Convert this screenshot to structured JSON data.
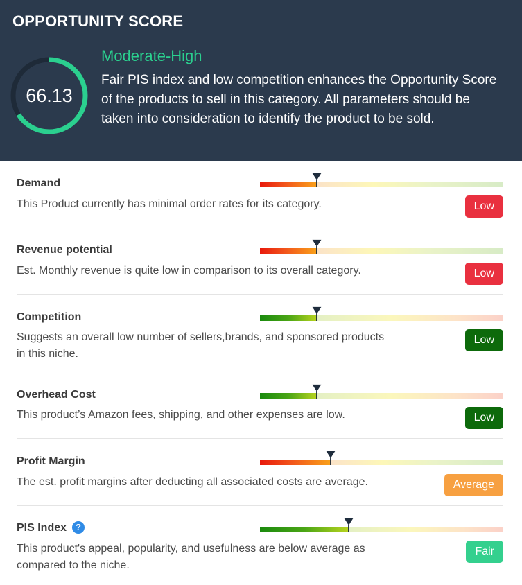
{
  "header": {
    "title": "OPPORTUNITY SCORE",
    "score": "66.13",
    "score_fraction": 0.6613,
    "level": "Moderate-High",
    "summary": "Fair PIS index and low competition enhances the Opportunity Score of the products to sell in this category. All parameters should be taken into consideration to identify the product to be sold."
  },
  "colors": {
    "header_bg": "#2b3a4d",
    "accent_green": "#2bd08f",
    "badge_low_red": "#e9303f",
    "badge_low_green": "#0d6a0b",
    "badge_average": "#f7a041",
    "badge_fair": "#34d08e"
  },
  "rows": [
    {
      "title": "Demand",
      "description": "This Product currently has minimal order rates for its category.",
      "badge": "Low",
      "badge_color": "#e9303f",
      "scale": "red-to-green",
      "level_fraction": 0.235
    },
    {
      "title": "Revenue potential",
      "description": "Est. Monthly revenue is quite low in comparison to its overall category.",
      "badge": "Low",
      "badge_color": "#e9303f",
      "scale": "red-to-green",
      "level_fraction": 0.235
    },
    {
      "title": "Competition",
      "description": "Suggests an overall low number of sellers,brands, and sponsored products in this niche.",
      "badge": "Low",
      "badge_color": "#0d6a0b",
      "scale": "green-to-red",
      "level_fraction": 0.235
    },
    {
      "title": "Overhead Cost",
      "description": "This product’s Amazon fees, shipping, and other expenses are low.",
      "badge": "Low",
      "badge_color": "#0d6a0b",
      "scale": "green-to-red",
      "level_fraction": 0.235
    },
    {
      "title": "Profit Margin",
      "description": "The est. profit margins after deducting all associated costs are average.",
      "badge": "Average",
      "badge_color": "#f7a041",
      "scale": "red-to-green",
      "level_fraction": 0.29
    },
    {
      "title": "PIS Index",
      "description": "This product's appeal, popularity, and usefulness are below average as compared to the niche.",
      "badge": "Fair",
      "badge_color": "#34d08e",
      "scale": "green-to-red",
      "level_fraction": 0.365,
      "help_icon": "question-circle-icon"
    }
  ]
}
